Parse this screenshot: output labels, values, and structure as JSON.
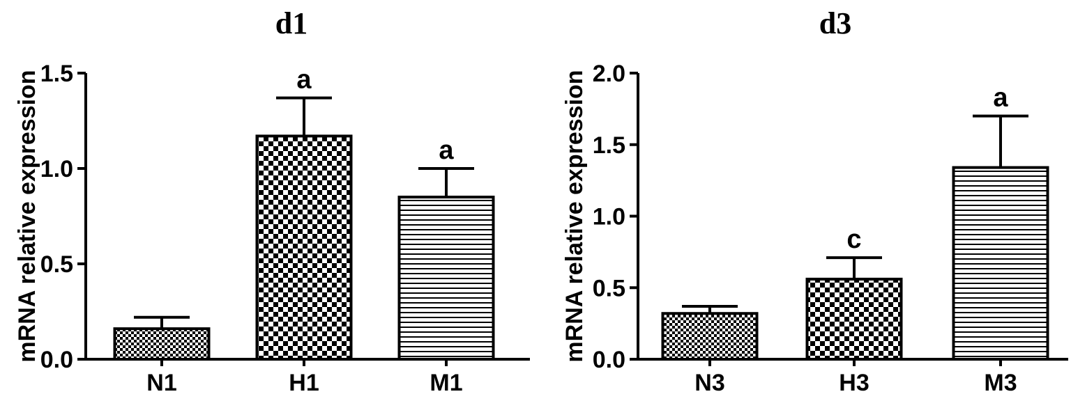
{
  "chart_data": [
    {
      "type": "bar",
      "title": "d1",
      "ylabel": "mRNA relative expression",
      "xlabel": "",
      "ylim": [
        0,
        1.5
      ],
      "yticks": [
        "0.0",
        "0.5",
        "1.0",
        "1.5"
      ],
      "categories": [
        "N1",
        "H1",
        "M1"
      ],
      "values": [
        0.16,
        1.17,
        0.85
      ],
      "errors": [
        0.06,
        0.2,
        0.15
      ],
      "significance": [
        "",
        "a",
        "a"
      ],
      "patterns": [
        "fine-checker",
        "checker",
        "horizontal-lines"
      ]
    },
    {
      "type": "bar",
      "title": "d3",
      "ylabel": "mRNA relative expression",
      "xlabel": "",
      "ylim": [
        0,
        2.0
      ],
      "yticks": [
        "0.0",
        "0.5",
        "1.0",
        "1.5",
        "2.0"
      ],
      "categories": [
        "N3",
        "H3",
        "M3"
      ],
      "values": [
        0.32,
        0.56,
        1.34
      ],
      "errors": [
        0.05,
        0.15,
        0.36
      ],
      "significance": [
        "",
        "c",
        "a"
      ],
      "patterns": [
        "fine-checker",
        "checker",
        "horizontal-lines"
      ]
    }
  ]
}
